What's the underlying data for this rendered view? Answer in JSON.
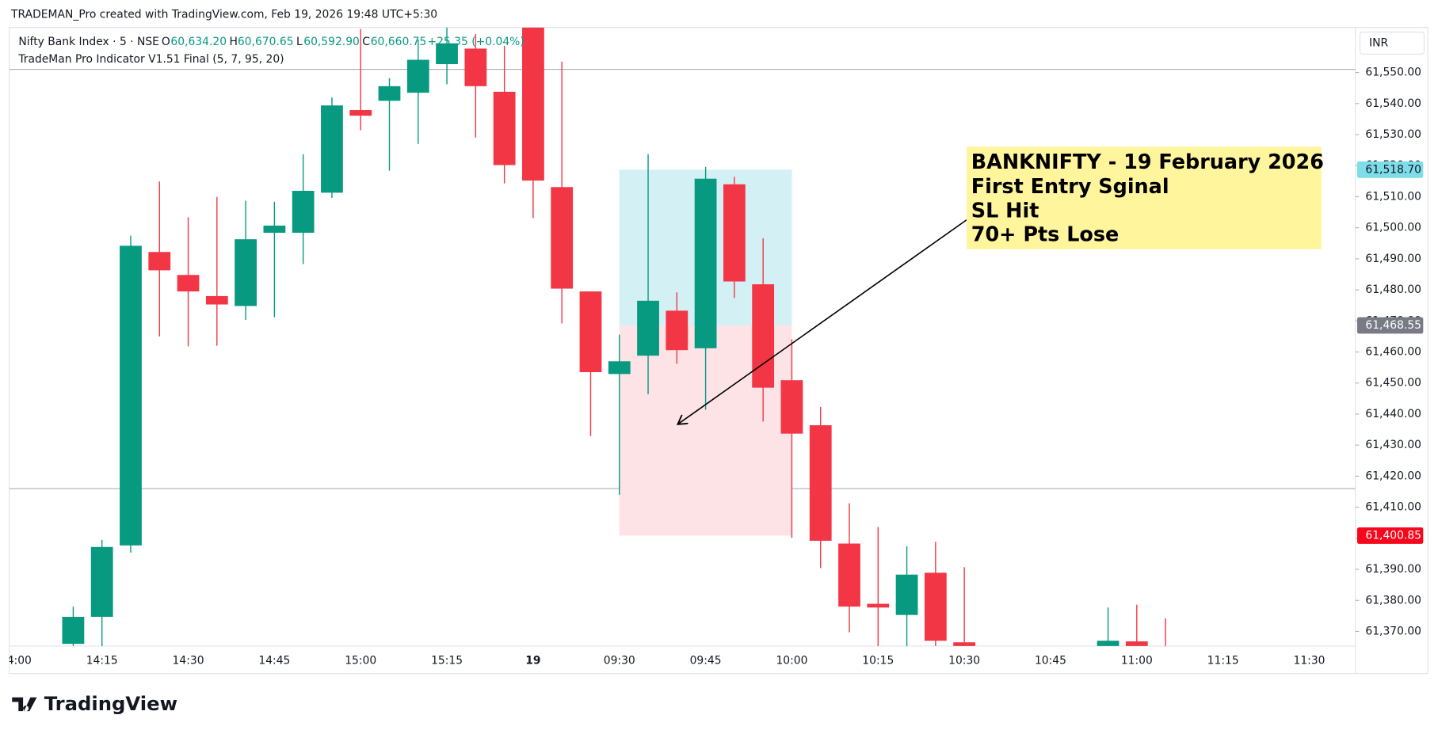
{
  "header": {
    "credit": "TRADEMAN_Pro created with TradingView.com, Feb 19, 2026 19:48 UTC+5:30"
  },
  "legend": {
    "symbol": "Nifty Bank Index · 5 · NSE",
    "o_label": "O",
    "o_value": "60,634.20",
    "h_label": "H",
    "h_value": "60,670.65",
    "l_label": "L",
    "l_value": "60,592.90",
    "c_label": "C",
    "c_value": "60,660.75",
    "change": "+25.35 (+0.04%)",
    "indicator": "TradeMan Pro Indicator V1.51 Final (5, 7, 95, 20)"
  },
  "currency": "INR",
  "annotation": {
    "lines": [
      "BANKNIFTY - 19 February 2026",
      "First Entry Sginal",
      "SL Hit",
      "70+ Pts Lose"
    ]
  },
  "footer": {
    "logo": "TradingView"
  },
  "chart_data": {
    "type": "candlestick",
    "up_color": "#089981",
    "down_color": "#f23645",
    "categories": [
      "14:00",
      "14:05",
      "14:10",
      "14:15",
      "14:20",
      "14:25",
      "14:30",
      "14:35",
      "14:40",
      "14:45",
      "14:50",
      "14:55",
      "15:00",
      "15:05",
      "15:10",
      "15:15",
      "15:20",
      "15:25",
      "09:15",
      "09:20",
      "09:25",
      "09:30",
      "09:35",
      "09:40",
      "09:45",
      "09:50",
      "09:55",
      "10:00",
      "10:05",
      "10:10",
      "10:15",
      "10:20",
      "10:25",
      "10:30",
      "10:35",
      "10:40",
      "10:45",
      "10:50",
      "10:55",
      "11:00",
      "11:05",
      "11:10",
      "11:15",
      "11:20",
      "11:25",
      "11:30"
    ],
    "open": [
      null,
      null,
      61366,
      61374.7,
      61397.7,
      61492.2,
      61484.8,
      61478,
      61474.8,
      61498.4,
      61498.4,
      61511.3,
      61537.9,
      61540.9,
      61543.5,
      61552.7,
      61557.7,
      61543.8,
      61564.5,
      61513.1,
      61479.5,
      61452.9,
      61458.8,
      61473.3,
      61461.2,
      61514,
      61481.8,
      61450.9,
      61436.4,
      61398.3,
      61378.9,
      61375.3,
      61388.9,
      61366.5,
      null,
      null,
      null,
      null,
      61365,
      61366.8,
      61362,
      null,
      null,
      null,
      null,
      null
    ],
    "high": [
      null,
      null,
      61378,
      61399.5,
      61497.5,
      61514.9,
      61503.4,
      61509.9,
      61508.7,
      61508.4,
      61523.7,
      61542,
      61564,
      61548.2,
      61560.6,
      61564.5,
      61562.4,
      61558.6,
      61566,
      61553.5,
      61479.5,
      61465.6,
      61523.7,
      61479.2,
      61519.6,
      61516.4,
      61496.6,
      61464.1,
      61442.3,
      61411.3,
      61403.6,
      61397.4,
      61398.9,
      61390.7,
      null,
      null,
      null,
      null,
      61377.7,
      61378.6,
      61374.2,
      null,
      null,
      null,
      null,
      null
    ],
    "low": [
      null,
      null,
      61362,
      61365,
      61395.4,
      61465,
      61461.8,
      61462,
      61470.3,
      61471.2,
      61488.3,
      61509.6,
      61531.4,
      61518.4,
      61527,
      61546.2,
      61529,
      61514.3,
      61503.1,
      61469.2,
      61432.9,
      61414,
      61446.4,
      61456.2,
      61441.4,
      61477.4,
      61437.6,
      61400.1,
      61390.4,
      61369.7,
      61365,
      61362,
      61362,
      61360,
      null,
      null,
      null,
      null,
      61360,
      61360,
      61355,
      null,
      null,
      null,
      null,
      null
    ],
    "close": [
      null,
      null,
      61374.7,
      61397.2,
      61494.2,
      61486.3,
      61479.5,
      61475.3,
      61496.3,
      61500.7,
      61511.9,
      61539.4,
      61536.1,
      61545.6,
      61554.1,
      61559.4,
      61545.6,
      61520.2,
      61515.2,
      61480.4,
      61453.5,
      61457,
      61476.5,
      61460.6,
      61515.8,
      61482.7,
      61448.5,
      61433.7,
      61399.2,
      61378,
      61377.7,
      61388.3,
      61367,
      61365,
      null,
      null,
      null,
      null,
      61367,
      61365,
      61358,
      null,
      null,
      null,
      null,
      null
    ],
    "ylim": [
      61365.3,
      61564.5
    ],
    "yticks": [
      {
        "value": 61370,
        "label": "61,370.00"
      },
      {
        "value": 61380,
        "label": "61,380.00"
      },
      {
        "value": 61390,
        "label": "61,390.00"
      },
      {
        "value": 61400,
        "label": "61,400.00"
      },
      {
        "value": 61410,
        "label": "61,410.00"
      },
      {
        "value": 61420,
        "label": "61,420.00"
      },
      {
        "value": 61430,
        "label": "61,430.00"
      },
      {
        "value": 61440,
        "label": "61,440.00"
      },
      {
        "value": 61450,
        "label": "61,450.00"
      },
      {
        "value": 61460,
        "label": "61,460.00"
      },
      {
        "value": 61470,
        "label": "61,470.00"
      },
      {
        "value": 61480,
        "label": "61,480.00"
      },
      {
        "value": 61490,
        "label": "61,490.00"
      },
      {
        "value": 61500,
        "label": "61,500.00"
      },
      {
        "value": 61510,
        "label": "61,510.00"
      },
      {
        "value": 61520,
        "label": "61,520.00"
      },
      {
        "value": 61530,
        "label": "61,530.00"
      },
      {
        "value": 61540,
        "label": "61,540.00"
      },
      {
        "value": 61550,
        "label": "61,550.00"
      }
    ],
    "xticks": [
      "14:00",
      "14:15",
      "14:30",
      "14:45",
      "15:00",
      "15:15",
      {
        "value": "09:15",
        "label": "19"
      },
      "09:30",
      "09:45",
      "10:00",
      "10:15",
      "10:30",
      "10:45",
      "11:00",
      "11:15",
      "11:30"
    ],
    "hlines": [
      61551,
      61416
    ],
    "position": {
      "start": "09:30",
      "end": "10:00",
      "entry": 61468.55,
      "target": 61518.7,
      "stop": 61400.85,
      "target_color": "#d3f0f5",
      "stop_color": "#fde3e6"
    },
    "price_tags": [
      {
        "value": 61518.7,
        "label": "61,518.70",
        "color": "#7ddde8",
        "text_color": "#131722"
      },
      {
        "value": 61468.55,
        "label": "61,468.55",
        "color": "#787b86",
        "text_color": "#ffffff"
      },
      {
        "value": 61400.85,
        "label": "61,400.85",
        "color": "#f7071b",
        "text_color": "#ffffff"
      }
    ]
  }
}
